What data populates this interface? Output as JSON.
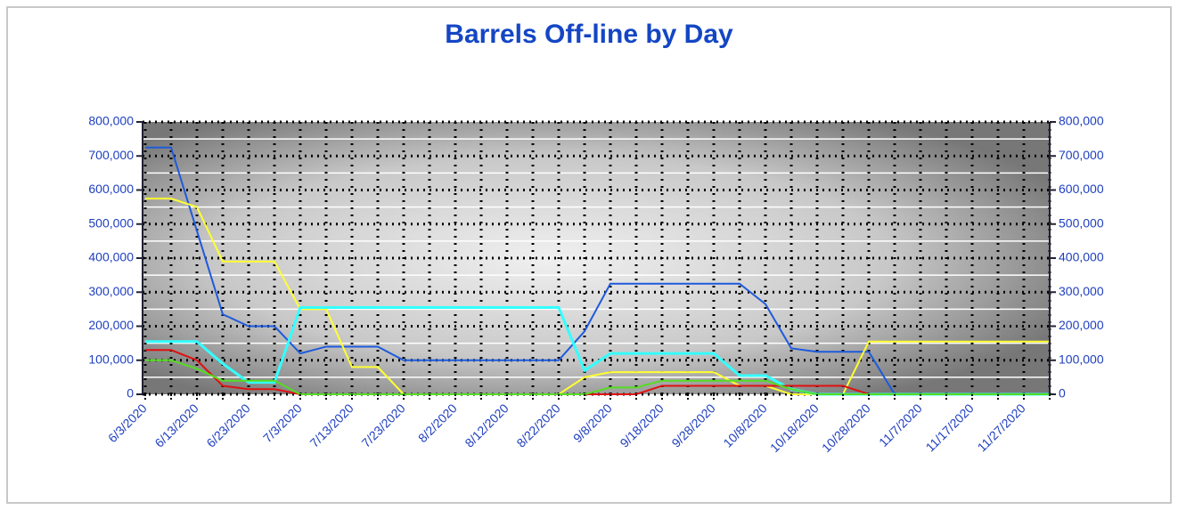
{
  "chart_data": {
    "type": "line",
    "title": "Barrels Off-line by Day",
    "categories": [
      "6/3/2020",
      null,
      "6/13/2020",
      null,
      "6/23/2020",
      null,
      "7/3/2020",
      null,
      "7/13/2020",
      null,
      "7/23/2020",
      null,
      "8/2/2020",
      null,
      "8/12/2020",
      null,
      "8/22/2020",
      null,
      "9/8/2020",
      null,
      "9/18/2020",
      null,
      "9/28/2020",
      null,
      "10/8/2020",
      null,
      "10/18/2020",
      null,
      "10/28/2020",
      null,
      "11/7/2020",
      null,
      "11/17/2020",
      null,
      "11/27/2020",
      null
    ],
    "series": [
      {
        "color": "#1e5adc",
        "values": [
          725000,
          725000,
          480000,
          235000,
          200000,
          200000,
          120000,
          140000,
          140000,
          140000,
          100000,
          100000,
          100000,
          100000,
          100000,
          100000,
          100000,
          185000,
          325000,
          325000,
          325000,
          325000,
          325000,
          325000,
          265000,
          135000,
          125000,
          125000,
          125000,
          0,
          0,
          0,
          0,
          0,
          0,
          0
        ]
      },
      {
        "color": "#ffff33",
        "values": [
          575000,
          575000,
          550000,
          390000,
          390000,
          390000,
          250000,
          250000,
          80000,
          80000,
          0,
          0,
          0,
          0,
          0,
          0,
          0,
          50000,
          65000,
          65000,
          65000,
          65000,
          65000,
          25000,
          25000,
          0,
          0,
          0,
          155000,
          155000,
          155000,
          155000,
          155000,
          155000,
          155000,
          155000
        ]
      },
      {
        "color": "#33ffff",
        "values": [
          155000,
          155000,
          155000,
          90000,
          35000,
          35000,
          255000,
          255000,
          255000,
          255000,
          255000,
          255000,
          255000,
          255000,
          255000,
          255000,
          255000,
          70000,
          120000,
          120000,
          120000,
          120000,
          120000,
          55000,
          55000,
          15000,
          0,
          0,
          0,
          0,
          0,
          0,
          0,
          0,
          0,
          0
        ]
      },
      {
        "color": "#e01010",
        "values": [
          130000,
          130000,
          100000,
          25000,
          15000,
          15000,
          0,
          0,
          0,
          0,
          0,
          0,
          0,
          0,
          0,
          0,
          0,
          0,
          0,
          0,
          25000,
          25000,
          25000,
          25000,
          25000,
          25000,
          25000,
          25000,
          0,
          0,
          0,
          0,
          0,
          0,
          0,
          0
        ]
      },
      {
        "color": "#55dd22",
        "values": [
          100000,
          100000,
          75000,
          40000,
          40000,
          40000,
          0,
          0,
          0,
          0,
          0,
          0,
          0,
          0,
          0,
          0,
          0,
          0,
          20000,
          20000,
          40000,
          40000,
          40000,
          40000,
          40000,
          15000,
          0,
          0,
          0,
          0,
          0,
          0,
          0,
          0,
          0,
          0
        ]
      }
    ],
    "ylim": [
      0,
      800000
    ],
    "yticks": [
      0,
      {
        "value": 100000,
        "label": "100,000"
      },
      {
        "value": 200000,
        "label": "200,000"
      },
      {
        "value": 300000,
        "label": "300,000"
      },
      {
        "value": 400000,
        "label": "400,000"
      },
      {
        "value": 500000,
        "label": "500,000"
      },
      {
        "value": 600000,
        "label": "600,000"
      },
      {
        "value": 700000,
        "label": "700,000"
      },
      {
        "value": 800000,
        "label": "800,000"
      }
    ],
    "y2lim": [
      0,
      800000
    ],
    "y2ticks": [
      0,
      {
        "value": 100000,
        "label": "100,000"
      },
      {
        "value": 200000,
        "label": "200,000"
      },
      {
        "value": 300000,
        "label": "300,000"
      },
      {
        "value": 400000,
        "label": "400,000"
      },
      {
        "value": 500000,
        "label": "500,000"
      },
      {
        "value": 600000,
        "label": "600,000"
      },
      {
        "value": 700000,
        "label": "700,000"
      },
      {
        "value": 800000,
        "label": "800,000"
      }
    ],
    "grid": true
  }
}
